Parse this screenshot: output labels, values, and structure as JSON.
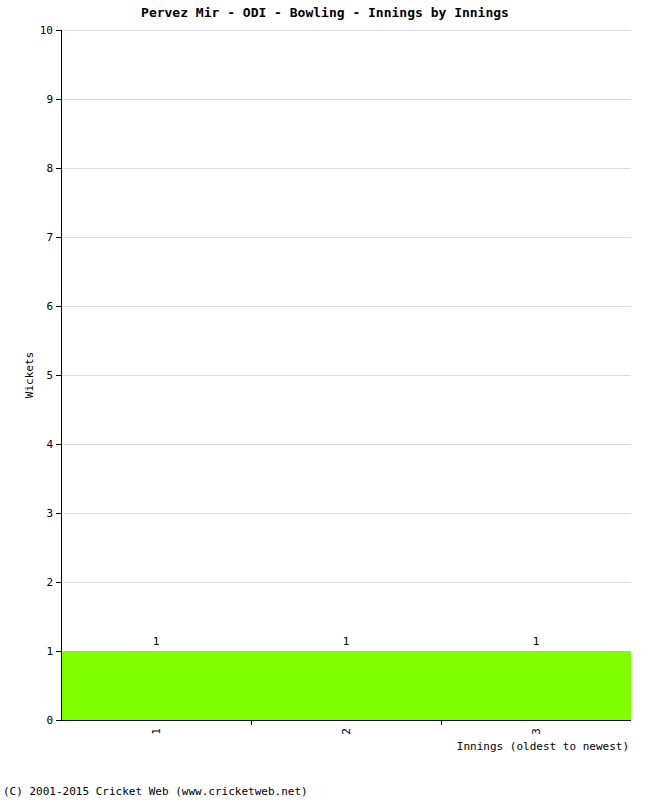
{
  "chart_data": {
    "type": "bar",
    "title": "Pervez Mir - ODI - Bowling - Innings by Innings",
    "y_label": "Wickets",
    "x_label": "Innings (oldest to newest)",
    "categories": [
      "1",
      "2",
      "3"
    ],
    "values": [
      1,
      1,
      1
    ],
    "color": "#80ff00",
    "ylim": [
      0,
      10
    ],
    "yticks": [
      0,
      1,
      2,
      3,
      4,
      5,
      6,
      7,
      8,
      9,
      10
    ],
    "grid": true,
    "data_labels": true,
    "annotations": [
      "(C) 2001-2015 Cricket Web (www.cricketweb.net)"
    ]
  }
}
